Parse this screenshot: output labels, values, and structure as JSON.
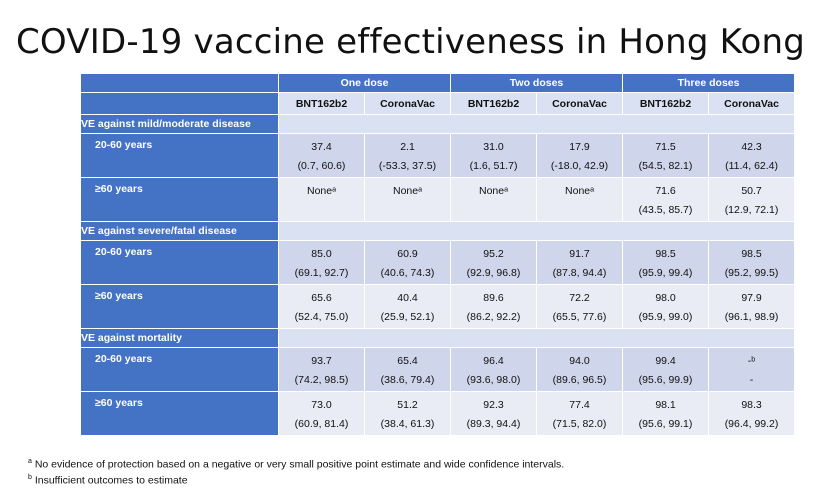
{
  "title": "COVID-19 vaccine effectiveness in Hong Kong",
  "groups": [
    "One dose",
    "Two doses",
    "Three doses"
  ],
  "vaccines": [
    "BNT162b2",
    "CoronaVac",
    "BNT162b2",
    "CoronaVac",
    "BNT162b2",
    "CoronaVac"
  ],
  "sections": [
    {
      "label": "VE against mild/moderate disease",
      "rows": [
        {
          "label": "20-60 years",
          "cells": [
            {
              "v": "37.4",
              "ci": "(0.7, 60.6)"
            },
            {
              "v": "2.1",
              "ci": "(-53.3, 37.5)"
            },
            {
              "v": "31.0",
              "ci": "(1.6, 51.7)"
            },
            {
              "v": "17.9",
              "ci": "(-18.0, 42.9)"
            },
            {
              "v": "71.5",
              "ci": "(54.5, 82.1)"
            },
            {
              "v": "42.3",
              "ci": "(11.4, 62.4)"
            }
          ]
        },
        {
          "label": "≥60 years",
          "cells": [
            {
              "v": "Noneᵃ",
              "ci": ""
            },
            {
              "v": "Noneᵃ",
              "ci": ""
            },
            {
              "v": "Noneᵃ",
              "ci": ""
            },
            {
              "v": "Noneᵃ",
              "ci": ""
            },
            {
              "v": "71.6",
              "ci": "(43.5, 85.7)"
            },
            {
              "v": "50.7",
              "ci": "(12.9, 72.1)"
            }
          ]
        }
      ]
    },
    {
      "label": "VE against severe/fatal disease",
      "rows": [
        {
          "label": "20-60 years",
          "cells": [
            {
              "v": "85.0",
              "ci": "(69.1, 92.7)"
            },
            {
              "v": "60.9",
              "ci": "(40.6, 74.3)"
            },
            {
              "v": "95.2",
              "ci": "(92.9, 96.8)"
            },
            {
              "v": "91.7",
              "ci": "(87.8, 94.4)"
            },
            {
              "v": "98.5",
              "ci": "(95.9, 99.4)"
            },
            {
              "v": "98.5",
              "ci": "(95.2, 99.5)"
            }
          ]
        },
        {
          "label": "≥60 years",
          "cells": [
            {
              "v": "65.6",
              "ci": "(52.4, 75.0)"
            },
            {
              "v": "40.4",
              "ci": "(25.9, 52.1)"
            },
            {
              "v": "89.6",
              "ci": "(86.2, 92.2)"
            },
            {
              "v": "72.2",
              "ci": "(65.5, 77.6)"
            },
            {
              "v": "98.0",
              "ci": "(95.9, 99.0)"
            },
            {
              "v": "97.9",
              "ci": "(96.1, 98.9)"
            }
          ]
        }
      ]
    },
    {
      "label": "VE against mortality",
      "rows": [
        {
          "label": "20-60 years",
          "cells": [
            {
              "v": "93.7",
              "ci": "(74.2, 98.5)"
            },
            {
              "v": "65.4",
              "ci": "(38.6, 79.4)"
            },
            {
              "v": "96.4",
              "ci": "(93.6, 98.0)"
            },
            {
              "v": "94.0",
              "ci": "(89.6, 96.5)"
            },
            {
              "v": "99.4",
              "ci": "(95.6, 99.9)"
            },
            {
              "v": "-ᵇ",
              "ci": "-"
            }
          ]
        },
        {
          "label": "≥60 years",
          "cells": [
            {
              "v": "73.0",
              "ci": "(60.9, 81.4)"
            },
            {
              "v": "51.2",
              "ci": "(38.4, 61.3)"
            },
            {
              "v": "92.3",
              "ci": "(89.3, 94.4)"
            },
            {
              "v": "77.4",
              "ci": "(71.5, 82.0)"
            },
            {
              "v": "98.1",
              "ci": "(95.6, 99.1)"
            },
            {
              "v": "98.3",
              "ci": "(96.4, 99.2)"
            }
          ]
        }
      ]
    }
  ],
  "footnotes": [
    {
      "mark": "a",
      "text": "No evidence of protection based on a negative or very small positive point estimate and wide confidence intervals."
    },
    {
      "mark": "b",
      "text": "Insufficient outcomes to estimate"
    }
  ],
  "colors": {
    "header_blue": "#4472c4",
    "row_dark": "#cfd5ea",
    "row_light": "#e9ebf5"
  }
}
